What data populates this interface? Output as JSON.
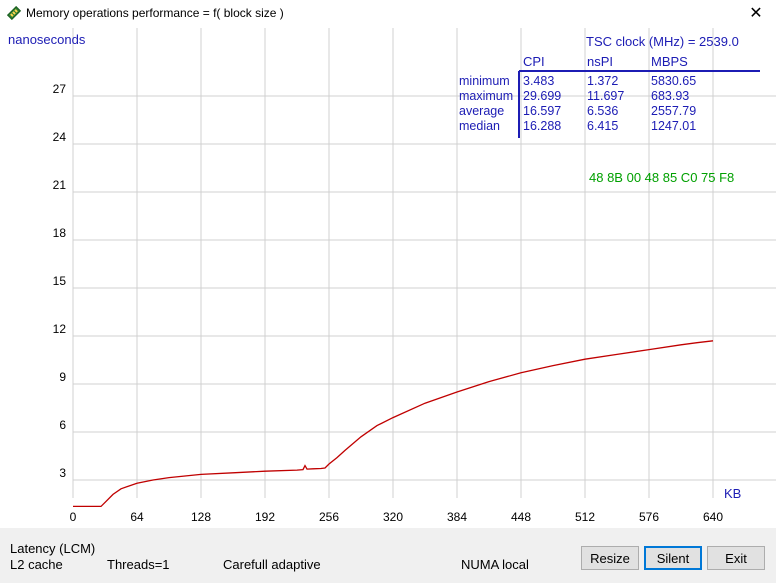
{
  "window": {
    "title": "Memory operations performance = f( block size )",
    "close_glyph": "✕"
  },
  "chart_data": {
    "type": "line",
    "ylabel": "nanoseconds",
    "xlabel": "KB",
    "xlim": [
      0,
      704
    ],
    "ylim": [
      0,
      30
    ],
    "x_ticks": [
      0,
      64,
      128,
      192,
      256,
      320,
      384,
      448,
      512,
      576,
      640
    ],
    "y_ticks": [
      3,
      6,
      9,
      12,
      15,
      18,
      21,
      24,
      27
    ],
    "grid": true,
    "series_color": "#c00000",
    "series": [
      {
        "x": [
          0,
          10,
          20,
          28,
          32,
          40,
          48,
          64,
          80,
          96,
          112,
          128,
          160,
          192,
          224,
          230,
          232,
          234,
          240,
          248,
          252,
          256,
          264,
          272,
          288,
          304,
          320,
          352,
          384,
          416,
          448,
          480,
          512,
          544,
          576,
          608,
          624,
          640
        ],
        "y": [
          1.35,
          1.35,
          1.35,
          1.35,
          1.6,
          2.1,
          2.45,
          2.8,
          3.0,
          3.15,
          3.25,
          3.35,
          3.45,
          3.55,
          3.62,
          3.65,
          3.9,
          3.68,
          3.7,
          3.72,
          3.75,
          4.0,
          4.4,
          4.85,
          5.7,
          6.4,
          6.9,
          7.8,
          8.5,
          9.15,
          9.7,
          10.15,
          10.55,
          10.85,
          11.15,
          11.45,
          11.58,
          11.7
        ]
      }
    ]
  },
  "stats": {
    "tsc_label": "TSC clock (MHz)  = 2539.0",
    "columns": [
      "CPI",
      "nsPI",
      "MBPS"
    ],
    "rows": [
      {
        "label": "minimum",
        "cpi": "3.483",
        "nspi": "1.372",
        "mbps": "5830.65"
      },
      {
        "label": "maximum",
        "cpi": "29.699",
        "nspi": "11.697",
        "mbps": "683.93"
      },
      {
        "label": "average",
        "cpi": "16.597",
        "nspi": "6.536",
        "mbps": "2557.79"
      },
      {
        "label": "median",
        "cpi": "16.288",
        "nspi": "6.415",
        "mbps": "1247.01"
      }
    ],
    "hex_bytes": "48  8B  00   48  85  C0  75  F8",
    "accent_color": "#1c1cb4",
    "hex_color": "#00a000"
  },
  "status": {
    "mode": "Latency (LCM)",
    "target": "L2 cache",
    "threads": "Threads=1",
    "adaptive": "Carefull adaptive",
    "numa": "NUMA local"
  },
  "buttons": {
    "resize": "Resize",
    "silent": "Silent",
    "exit": "Exit"
  }
}
